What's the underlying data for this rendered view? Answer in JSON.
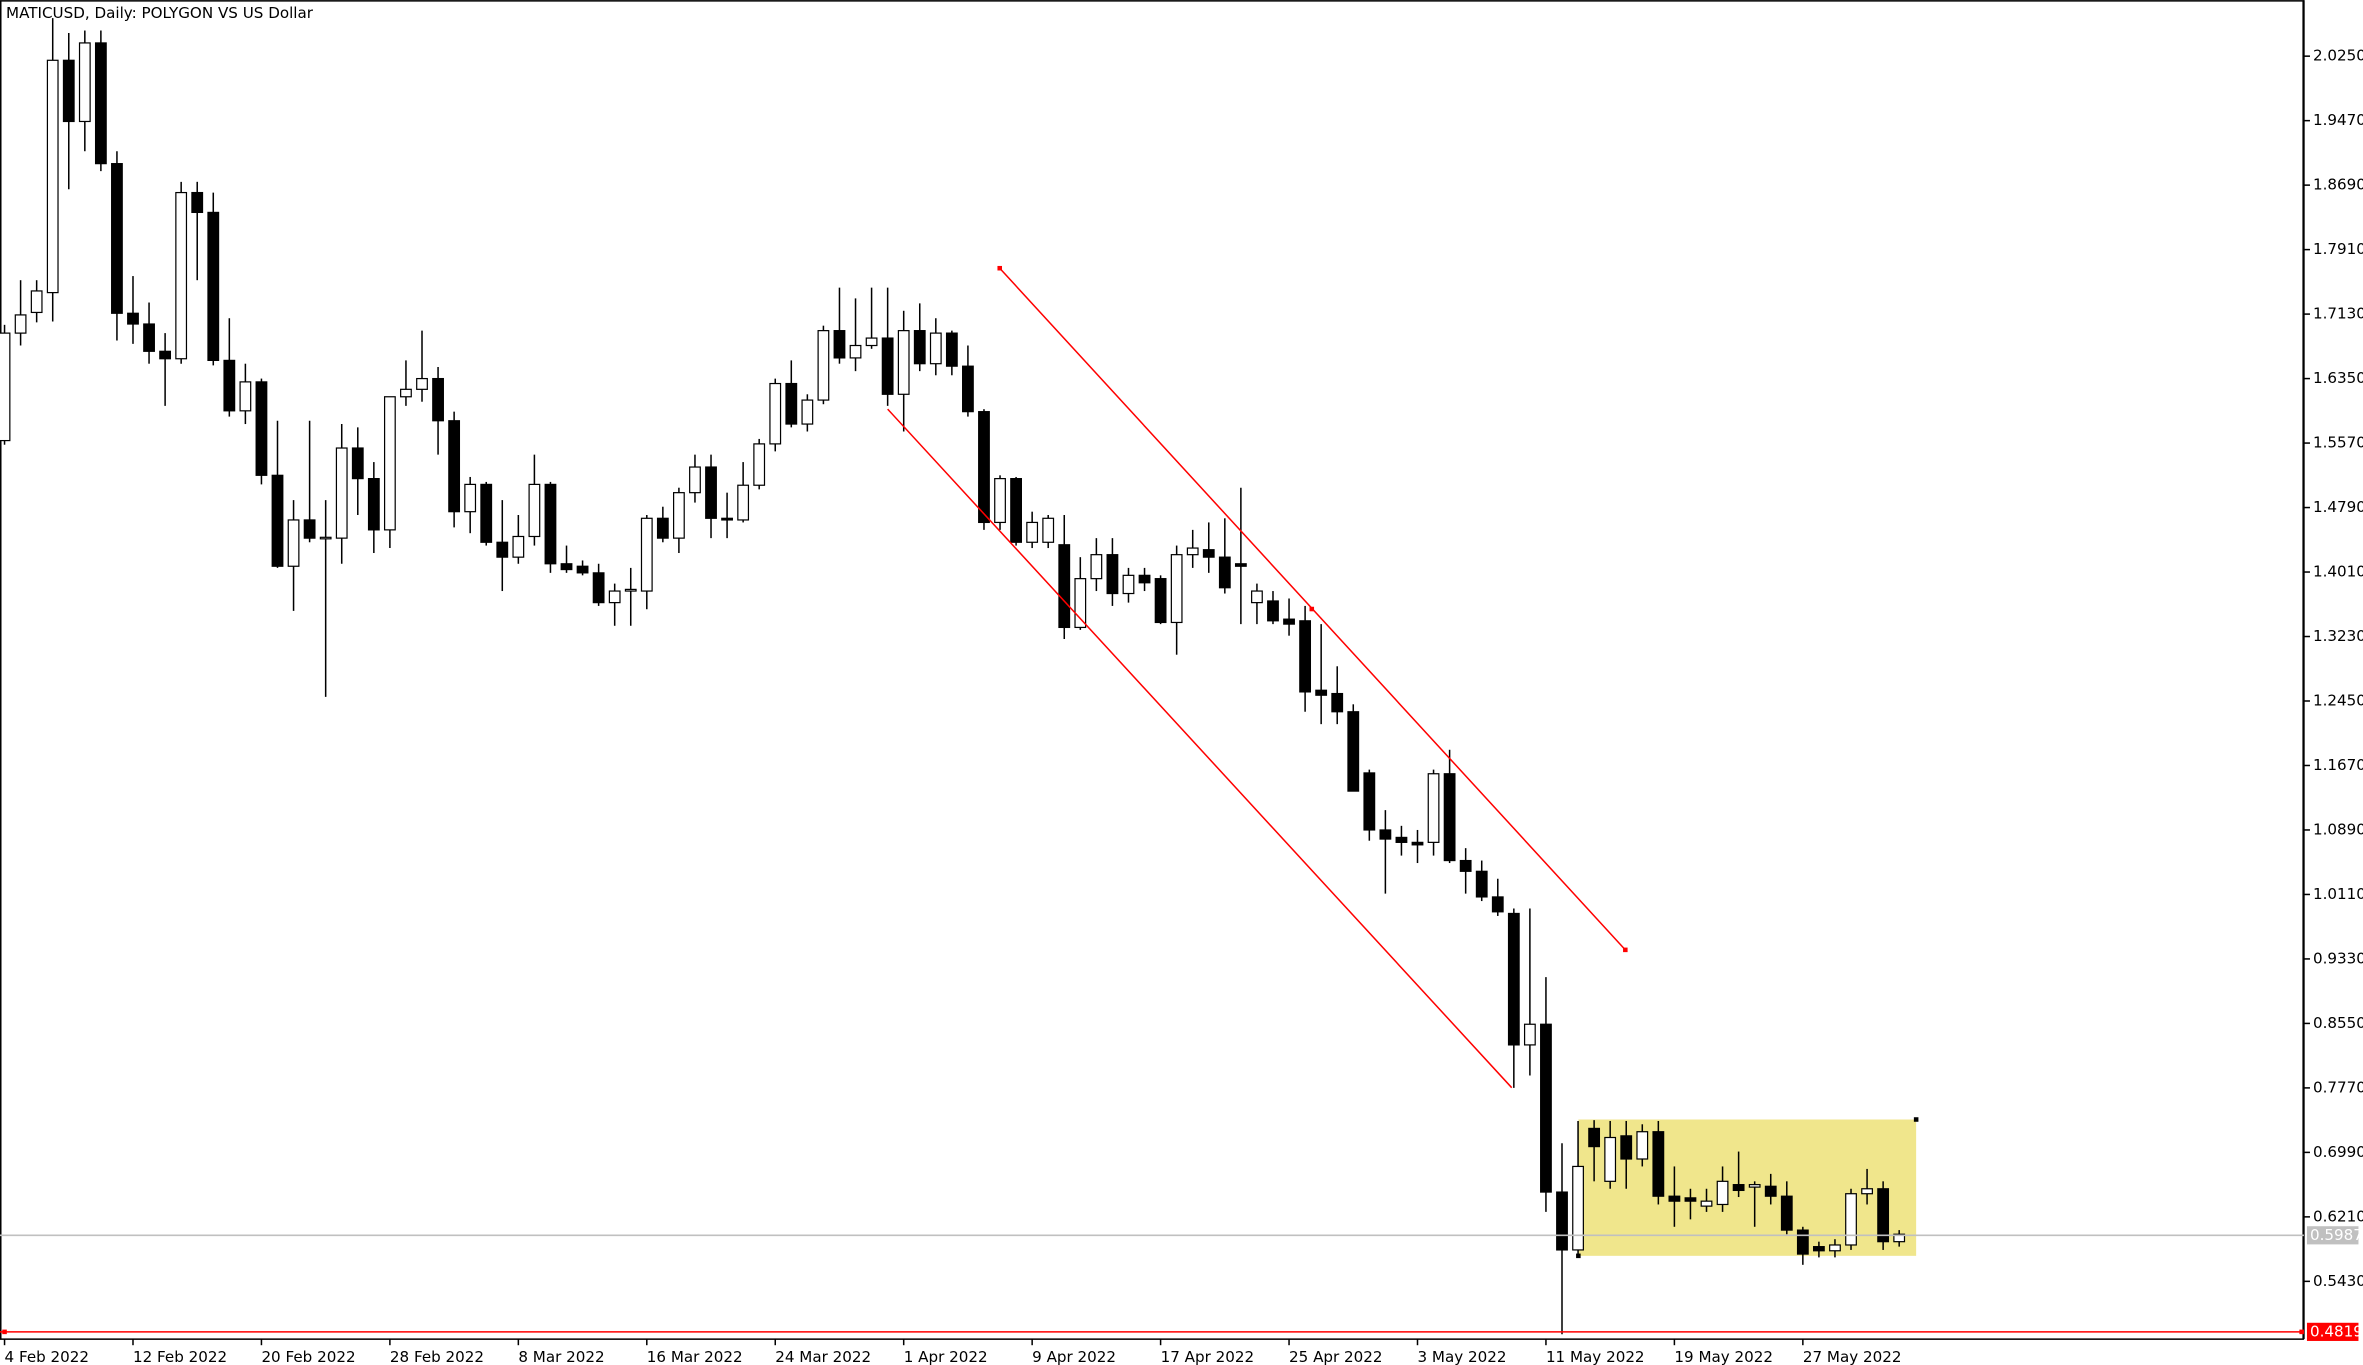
{
  "chart_data": {
    "type": "candlestick",
    "title": "MATICUSD, Daily:  POLYGON VS US Dollar",
    "categories": [
      "4 Feb 2022",
      null,
      null,
      null,
      null,
      null,
      null,
      null,
      "12 Feb 2022",
      null,
      null,
      null,
      null,
      null,
      null,
      null,
      "20 Feb 2022",
      null,
      null,
      null,
      null,
      null,
      null,
      null,
      "28 Feb 2022",
      null,
      null,
      null,
      null,
      null,
      null,
      null,
      "8 Mar 2022",
      null,
      null,
      null,
      null,
      null,
      null,
      null,
      "16 Mar 2022",
      null,
      null,
      null,
      null,
      null,
      null,
      null,
      "24 Mar 2022",
      null,
      null,
      null,
      null,
      null,
      null,
      null,
      "1 Apr 2022",
      null,
      null,
      null,
      null,
      null,
      null,
      null,
      "9 Apr 2022",
      null,
      null,
      null,
      null,
      null,
      null,
      null,
      "17 Apr 2022",
      null,
      null,
      null,
      null,
      null,
      null,
      null,
      "25 Apr 2022",
      null,
      null,
      null,
      null,
      null,
      null,
      null,
      "3 May 2022",
      null,
      null,
      null,
      null,
      null,
      null,
      null,
      "11 May 2022",
      null,
      null,
      null,
      null,
      null,
      null,
      null,
      "19 May 2022",
      null,
      null,
      null,
      null,
      null,
      null,
      null,
      "27 May 2022",
      null,
      null,
      null,
      null,
      null,
      null
    ],
    "open": [
      1.56,
      1.69,
      1.715,
      1.739,
      2.02,
      1.946,
      2.041,
      1.895,
      1.714,
      1.701,
      1.668,
      1.659,
      1.86,
      1.836,
      1.657,
      1.596,
      1.631,
      1.518,
      1.408,
      1.464,
      1.442,
      1.442,
      1.551,
      1.514,
      1.452,
      1.613,
      1.622,
      1.635,
      1.584,
      1.474,
      1.507,
      1.437,
      1.419,
      1.444,
      1.507,
      1.411,
      1.408,
      1.4,
      1.364,
      1.378,
      1.378,
      1.466,
      1.442,
      1.497,
      1.528,
      1.466,
      1.464,
      1.506,
      1.556,
      1.629,
      1.58,
      1.609,
      1.693,
      1.66,
      1.675,
      1.684,
      1.616,
      1.693,
      1.653,
      1.69,
      1.65,
      1.595,
      1.461,
      1.514,
      1.437,
      1.437,
      1.434,
      1.334,
      1.393,
      1.422,
      1.375,
      1.397,
      1.393,
      1.34,
      1.422,
      1.428,
      1.419,
      1.411,
      1.364,
      1.366,
      1.344,
      1.342,
      1.258,
      1.254,
      1.232,
      1.158,
      1.089,
      1.08,
      1.074,
      1.074,
      1.157,
      1.052,
      1.039,
      1.008,
      0.988,
      0.829,
      0.854,
      0.651,
      0.581,
      0.728,
      0.664,
      0.719,
      0.691,
      0.724,
      0.646,
      0.644,
      0.634,
      0.636,
      0.66,
      0.657,
      0.658,
      0.646,
      0.605,
      0.585,
      0.58,
      0.587,
      0.649,
      0.655,
      0.591
    ],
    "high": [
      1.7,
      1.754,
      1.754,
      2.071,
      2.053,
      2.056,
      2.056,
      1.91,
      1.759,
      1.727,
      1.69,
      1.873,
      1.873,
      1.86,
      1.708,
      1.653,
      1.635,
      1.584,
      1.488,
      1.584,
      1.488,
      1.58,
      1.576,
      1.534,
      1.613,
      1.657,
      1.693,
      1.649,
      1.595,
      1.516,
      1.51,
      1.488,
      1.47,
      1.543,
      1.51,
      1.433,
      1.415,
      1.411,
      1.387,
      1.406,
      1.47,
      1.48,
      1.503,
      1.543,
      1.543,
      1.497,
      1.534,
      1.562,
      1.635,
      1.657,
      1.616,
      1.699,
      1.745,
      1.732,
      1.745,
      1.745,
      1.717,
      1.726,
      1.708,
      1.693,
      1.675,
      1.598,
      1.518,
      1.516,
      1.474,
      1.47,
      1.47,
      1.419,
      1.442,
      1.442,
      1.406,
      1.406,
      1.397,
      1.433,
      1.452,
      1.461,
      1.466,
      1.503,
      1.387,
      1.378,
      1.369,
      1.36,
      1.338,
      1.287,
      1.241,
      1.162,
      1.113,
      1.094,
      1.089,
      1.162,
      1.186,
      1.067,
      1.052,
      1.03,
      0.994,
      0.994,
      0.911,
      0.71,
      0.737,
      0.738,
      0.737,
      0.737,
      0.733,
      0.737,
      0.682,
      0.655,
      0.655,
      0.682,
      0.7,
      0.664,
      0.673,
      0.664,
      0.609,
      0.591,
      0.594,
      0.655,
      0.679,
      0.664,
      0.605
    ],
    "low": [
      1.555,
      1.675,
      1.703,
      1.704,
      1.864,
      1.91,
      1.886,
      1.681,
      1.677,
      1.653,
      1.602,
      1.653,
      1.754,
      1.651,
      1.589,
      1.58,
      1.507,
      1.406,
      1.354,
      1.437,
      1.25,
      1.411,
      1.47,
      1.424,
      1.43,
      1.602,
      1.607,
      1.543,
      1.455,
      1.448,
      1.433,
      1.378,
      1.411,
      1.433,
      1.4,
      1.4,
      1.397,
      1.36,
      1.336,
      1.336,
      1.356,
      1.437,
      1.424,
      1.485,
      1.442,
      1.442,
      1.461,
      1.501,
      1.547,
      1.576,
      1.571,
      1.604,
      1.653,
      1.644,
      1.671,
      1.602,
      1.571,
      1.644,
      1.639,
      1.639,
      1.589,
      1.452,
      1.452,
      1.433,
      1.43,
      1.43,
      1.32,
      1.331,
      1.378,
      1.36,
      1.364,
      1.378,
      1.338,
      1.301,
      1.406,
      1.4,
      1.375,
      1.338,
      1.338,
      1.338,
      1.324,
      1.232,
      1.217,
      1.217,
      1.136,
      1.076,
      1.012,
      1.058,
      1.049,
      1.058,
      1.049,
      1.012,
      1.003,
      0.985,
      0.777,
      0.792,
      0.627,
      0.479,
      0.572,
      0.664,
      0.655,
      0.655,
      0.682,
      0.636,
      0.609,
      0.618,
      0.627,
      0.627,
      0.645,
      0.609,
      0.636,
      0.6,
      0.563,
      0.572,
      0.572,
      0.581,
      0.636,
      0.581,
      0.585
    ],
    "close": [
      1.69,
      1.712,
      1.741,
      2.02,
      1.946,
      2.041,
      1.895,
      1.714,
      1.701,
      1.668,
      1.659,
      1.86,
      1.836,
      1.657,
      1.596,
      1.631,
      1.518,
      1.408,
      1.464,
      1.442,
      1.443,
      1.551,
      1.514,
      1.452,
      1.613,
      1.622,
      1.635,
      1.584,
      1.474,
      1.507,
      1.437,
      1.419,
      1.444,
      1.507,
      1.411,
      1.404,
      1.4,
      1.364,
      1.378,
      1.38,
      1.466,
      1.442,
      1.497,
      1.528,
      1.466,
      1.464,
      1.506,
      1.556,
      1.629,
      1.58,
      1.609,
      1.693,
      1.66,
      1.675,
      1.684,
      1.616,
      1.693,
      1.653,
      1.69,
      1.65,
      1.595,
      1.461,
      1.514,
      1.437,
      1.461,
      1.466,
      1.334,
      1.393,
      1.422,
      1.375,
      1.397,
      1.388,
      1.34,
      1.422,
      1.43,
      1.419,
      1.382,
      1.408,
      1.378,
      1.342,
      1.338,
      1.256,
      1.252,
      1.232,
      1.136,
      1.089,
      1.078,
      1.074,
      1.071,
      1.157,
      1.052,
      1.039,
      1.008,
      0.99,
      0.829,
      0.854,
      0.651,
      0.581,
      0.682,
      0.706,
      0.717,
      0.691,
      0.724,
      0.646,
      0.64,
      0.64,
      0.64,
      0.664,
      0.653,
      0.66,
      0.646,
      0.605,
      0.576,
      0.58,
      0.587,
      0.649,
      0.655,
      0.591,
      0.6
    ],
    "bull_color": "#ffffff",
    "bear_color": "#000000",
    "ylim": [
      0.4731,
      2.0928
    ],
    "yticks": [
      {
        "value": 2.025,
        "label": "2.0250"
      },
      {
        "value": 1.947,
        "label": "1.9470"
      },
      {
        "value": 1.869,
        "label": "1.8690"
      },
      {
        "value": 1.791,
        "label": "1.7910"
      },
      {
        "value": 1.713,
        "label": "1.7130"
      },
      {
        "value": 1.635,
        "label": "1.6350"
      },
      {
        "value": 1.557,
        "label": "1.5570"
      },
      {
        "value": 1.479,
        "label": "1.4790"
      },
      {
        "value": 1.401,
        "label": "1.4010"
      },
      {
        "value": 1.323,
        "label": "1.3230"
      },
      {
        "value": 1.245,
        "label": "1.2450"
      },
      {
        "value": 1.167,
        "label": "1.1670"
      },
      {
        "value": 1.089,
        "label": "1.0890"
      },
      {
        "value": 1.011,
        "label": "1.0110"
      },
      {
        "value": 0.933,
        "label": "0.9330"
      },
      {
        "value": 0.855,
        "label": "0.8550"
      },
      {
        "value": 0.777,
        "label": "0.7770"
      },
      {
        "value": 0.699,
        "label": "0.6990"
      },
      {
        "value": 0.621,
        "label": "0.6210"
      },
      {
        "value": 0.543,
        "label": "0.5430"
      }
    ],
    "last_price": 0.5987,
    "support_level": 0.4819,
    "support_color": "#ff0000"
  }
}
